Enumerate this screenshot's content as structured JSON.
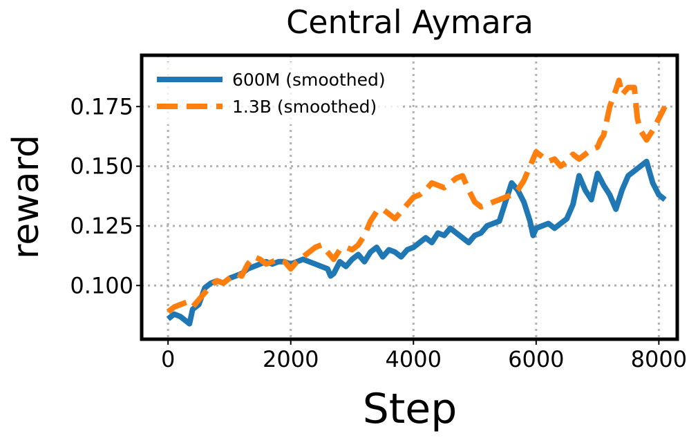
{
  "chart_data": {
    "type": "line",
    "title": "Central Aymara",
    "xlabel": "Step",
    "ylabel": "reward",
    "xlim": [
      -430,
      8300
    ],
    "ylim": [
      0.0775,
      0.1965
    ],
    "x_ticks": [
      0,
      2000,
      4000,
      6000,
      8000
    ],
    "x_tick_labels": [
      "0",
      "2000",
      "4000",
      "6000",
      "8000"
    ],
    "y_ticks": [
      0.1,
      0.125,
      0.15,
      0.175
    ],
    "y_tick_labels": [
      "0.100",
      "0.125",
      "0.150",
      "0.175"
    ],
    "grid": true,
    "legend_position": "top-left",
    "series": [
      {
        "name": "600M (smoothed)",
        "color": "#1f77b4",
        "style": "solid",
        "x": [
          0,
          100,
          200,
          300,
          350,
          400,
          500,
          600,
          700,
          800,
          900,
          1000,
          1100,
          1200,
          1300,
          1400,
          1500,
          1600,
          1700,
          1800,
          1900,
          2000,
          2100,
          2200,
          2300,
          2400,
          2500,
          2600,
          2650,
          2700,
          2800,
          2900,
          3000,
          3100,
          3200,
          3300,
          3400,
          3500,
          3600,
          3700,
          3800,
          3900,
          4000,
          4100,
          4200,
          4300,
          4400,
          4500,
          4600,
          4700,
          4800,
          4900,
          5000,
          5100,
          5200,
          5300,
          5400,
          5500,
          5600,
          5700,
          5800,
          5900,
          5950,
          6000,
          6100,
          6200,
          6300,
          6400,
          6500,
          6600,
          6700,
          6800,
          6900,
          7000,
          7100,
          7200,
          7300,
          7400,
          7500,
          7600,
          7700,
          7800,
          7900,
          8000,
          8100
        ],
        "y": [
          0.086,
          0.088,
          0.087,
          0.085,
          0.084,
          0.09,
          0.092,
          0.099,
          0.101,
          0.102,
          0.101,
          0.103,
          0.104,
          0.105,
          0.107,
          0.108,
          0.109,
          0.11,
          0.109,
          0.11,
          0.11,
          0.109,
          0.11,
          0.111,
          0.11,
          0.109,
          0.108,
          0.107,
          0.104,
          0.105,
          0.11,
          0.108,
          0.111,
          0.113,
          0.11,
          0.114,
          0.116,
          0.112,
          0.115,
          0.114,
          0.112,
          0.115,
          0.116,
          0.118,
          0.12,
          0.118,
          0.122,
          0.121,
          0.124,
          0.122,
          0.12,
          0.118,
          0.121,
          0.122,
          0.125,
          0.126,
          0.127,
          0.135,
          0.143,
          0.14,
          0.135,
          0.127,
          0.121,
          0.124,
          0.125,
          0.126,
          0.124,
          0.126,
          0.128,
          0.134,
          0.146,
          0.14,
          0.136,
          0.147,
          0.142,
          0.138,
          0.132,
          0.14,
          0.146,
          0.148,
          0.15,
          0.152,
          0.143,
          0.138,
          0.136
        ]
      },
      {
        "name": "1.3B (smoothed)",
        "color": "#ff7f0e",
        "style": "dashed",
        "x": [
          0,
          100,
          200,
          300,
          400,
          500,
          600,
          700,
          800,
          900,
          1000,
          1100,
          1200,
          1300,
          1400,
          1500,
          1600,
          1700,
          1800,
          1900,
          2000,
          2100,
          2200,
          2300,
          2400,
          2500,
          2600,
          2700,
          2800,
          2900,
          3000,
          3100,
          3200,
          3300,
          3400,
          3500,
          3600,
          3700,
          3800,
          3900,
          4000,
          4100,
          4200,
          4300,
          4400,
          4500,
          4600,
          4700,
          4800,
          4900,
          5000,
          5100,
          5200,
          5300,
          5400,
          5500,
          5600,
          5700,
          5800,
          5900,
          6000,
          6100,
          6200,
          6300,
          6400,
          6500,
          6600,
          6700,
          6800,
          6900,
          7000,
          7050,
          7100,
          7200,
          7300,
          7350,
          7400,
          7500,
          7600,
          7650,
          7700,
          7800,
          7900,
          8000,
          8100
        ],
        "y": [
          0.089,
          0.091,
          0.092,
          0.093,
          0.091,
          0.094,
          0.097,
          0.1,
          0.102,
          0.101,
          0.103,
          0.105,
          0.104,
          0.109,
          0.112,
          0.111,
          0.109,
          0.11,
          0.111,
          0.11,
          0.107,
          0.11,
          0.112,
          0.114,
          0.116,
          0.117,
          0.114,
          0.111,
          0.115,
          0.116,
          0.115,
          0.117,
          0.121,
          0.127,
          0.131,
          0.132,
          0.13,
          0.128,
          0.131,
          0.134,
          0.137,
          0.138,
          0.14,
          0.143,
          0.142,
          0.141,
          0.143,
          0.145,
          0.146,
          0.14,
          0.135,
          0.133,
          0.134,
          0.135,
          0.136,
          0.137,
          0.138,
          0.14,
          0.144,
          0.15,
          0.156,
          0.154,
          0.152,
          0.153,
          0.15,
          0.152,
          0.155,
          0.153,
          0.155,
          0.157,
          0.158,
          0.161,
          0.163,
          0.175,
          0.182,
          0.186,
          0.18,
          0.183,
          0.183,
          0.17,
          0.165,
          0.161,
          0.165,
          0.17,
          0.175
        ]
      }
    ]
  }
}
